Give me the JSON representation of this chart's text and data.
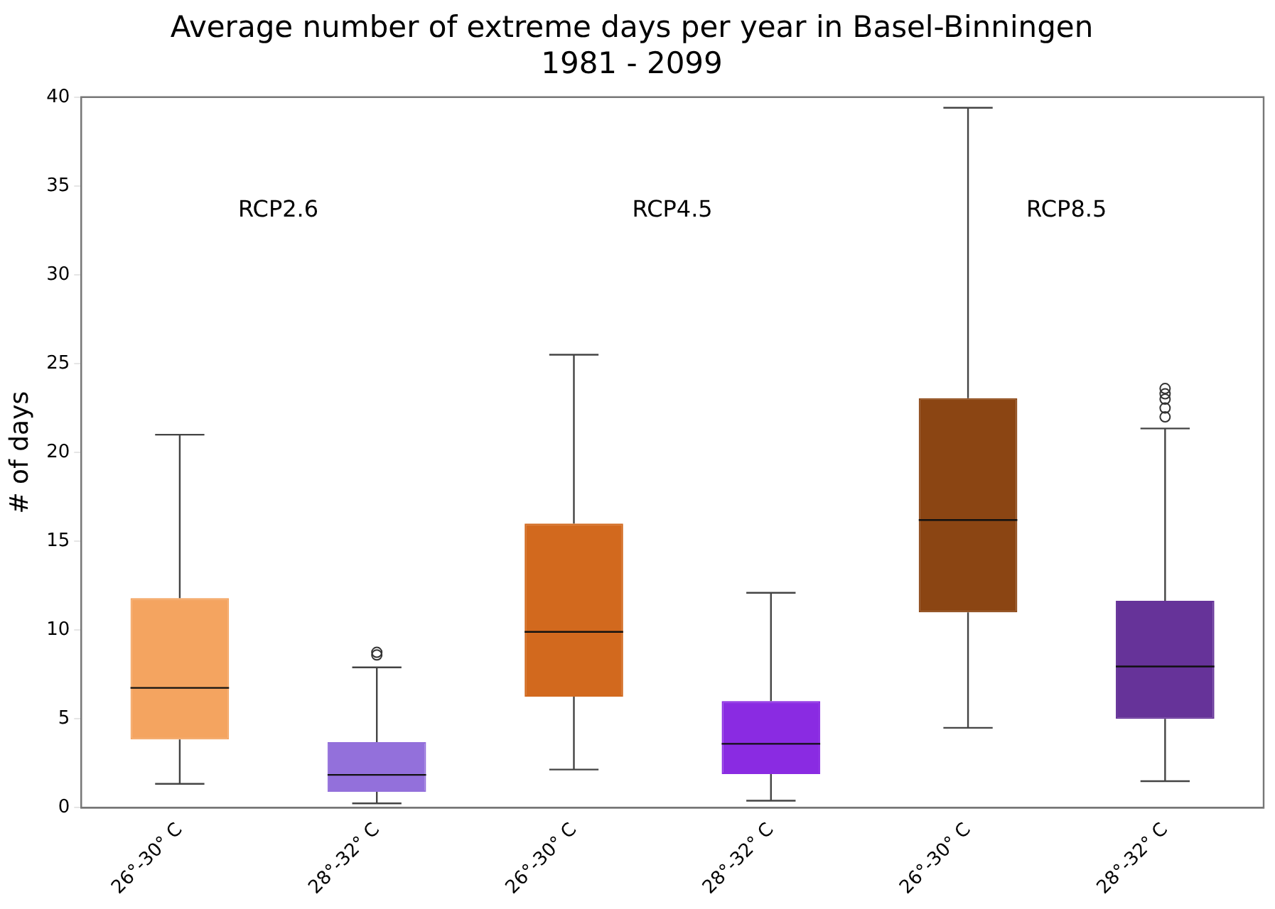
{
  "chart_data": {
    "type": "box",
    "title": "Average number of extreme days per year in Basel-Binningen\n1981 - 2099",
    "ylabel": "# of days",
    "categories": [
      "26°-30° C",
      "28°-32° C",
      "26°-30° C",
      "28°-32° C",
      "26°-30° C",
      "28°-32° C"
    ],
    "colors": [
      "#f4a460",
      "#9370db",
      "#d2691e",
      "#8a2be2",
      "#8b4513",
      "#663399"
    ],
    "boxes": [
      {
        "low": 1.35,
        "q1": 3.85,
        "median": 6.75,
        "q3": 11.8,
        "high": 21.0
      },
      {
        "low": 0.25,
        "q1": 0.9,
        "median": 1.85,
        "q3": 3.7,
        "high": 7.9,
        "outliers": [
          8.6,
          8.75
        ]
      },
      {
        "low": 2.15,
        "q1": 6.25,
        "median": 9.9,
        "q3": 16.0,
        "high": 25.5
      },
      {
        "low": 0.4,
        "q1": 1.9,
        "median": 3.6,
        "q3": 6.0,
        "high": 12.1
      },
      {
        "low": 4.5,
        "q1": 11.0,
        "median": 16.2,
        "q3": 23.05,
        "high": 39.4
      },
      {
        "low": 1.5,
        "q1": 5.0,
        "median": 7.95,
        "q3": 11.65,
        "high": 21.35,
        "outliers": [
          22.0,
          22.5,
          23.0,
          23.3,
          23.6
        ]
      }
    ],
    "annotations": [
      "RCP2.6",
      "RCP4.5",
      "RCP8.5"
    ],
    "ylim": [
      0,
      40
    ],
    "yticks": [
      0,
      5,
      10,
      15,
      20,
      25,
      30,
      35,
      40
    ],
    "grid": false,
    "legend": false
  }
}
